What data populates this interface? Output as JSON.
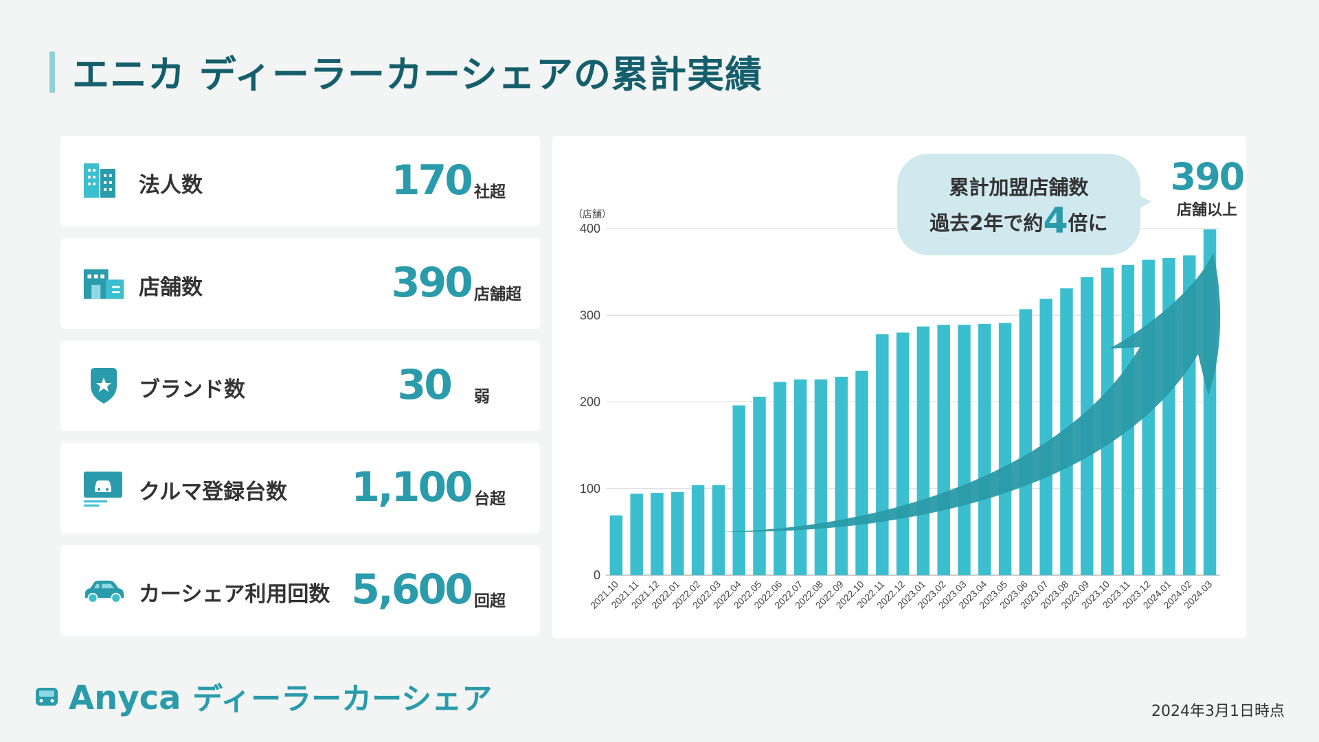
{
  "page": {
    "title": "エニカ ディーラーカーシェアの累計実績",
    "as_of": "2024年3月1日時点"
  },
  "stats": [
    {
      "label": "法人数",
      "value": "170",
      "unit": "社超",
      "icon": "building-icon"
    },
    {
      "label": "店舗数",
      "value": "390",
      "unit": "店舗超",
      "icon": "store-icon"
    },
    {
      "label": "ブランド数",
      "value": "30",
      "unit": "弱",
      "icon": "shield-star-icon"
    },
    {
      "label": "クルマ登録台数",
      "value": "1,100",
      "unit": "台超",
      "icon": "car-registration-icon"
    },
    {
      "label": "カーシェア利用回数",
      "value": "5,600",
      "unit": "回超",
      "icon": "car-icon"
    }
  ],
  "callout": {
    "line1": "累計加盟店舗数",
    "line2_pre": "過去2年で約",
    "line2_num": "4",
    "line2_post": "倍に",
    "value": "390",
    "value_unit": "店舗以上"
  },
  "logo": {
    "name": "Anyca",
    "sub": "ディーラーカーシェア"
  },
  "colors": {
    "accent": "#2a9bab",
    "bar": "#3bbfcf",
    "title": "#155e6b",
    "arrow": "#2a9aa8",
    "bubble": "#cfe9ee"
  },
  "chart_data": {
    "type": "bar",
    "title": "累計加盟店舗数",
    "ylabel": "（店舗）",
    "xlabel": "",
    "ylim": [
      0,
      400
    ],
    "yticks": [
      0,
      100,
      200,
      300,
      400
    ],
    "categories": [
      "2021.10",
      "2021.11",
      "2021.12",
      "2022.01",
      "2022.02",
      "2022.03",
      "2022.04",
      "2022.05",
      "2022.06",
      "2022.07",
      "2022.08",
      "2022.09",
      "2022.10",
      "2022.11",
      "2022.12",
      "2023.01",
      "2023.02",
      "2023.03",
      "2023.04",
      "2023.05",
      "2023.06",
      "2023.07",
      "2023.08",
      "2023.09",
      "2023.10",
      "2023.11",
      "2023.12",
      "2024.01",
      "2024.02",
      "2024.03"
    ],
    "values": [
      69,
      94,
      95,
      96,
      104,
      104,
      196,
      206,
      223,
      226,
      226,
      229,
      236,
      278,
      280,
      287,
      289,
      289,
      290,
      291,
      307,
      319,
      331,
      344,
      355,
      358,
      364,
      366,
      369,
      399
    ]
  }
}
